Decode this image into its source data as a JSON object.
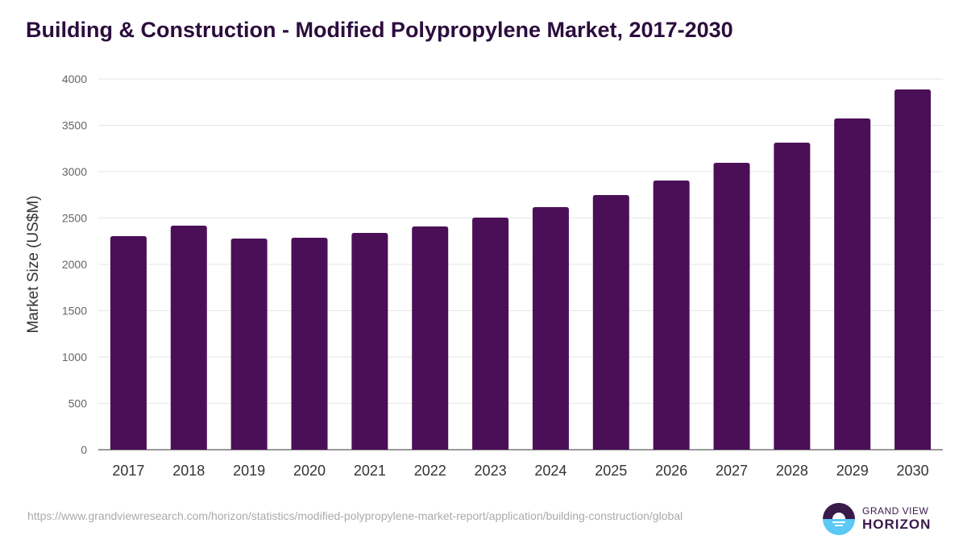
{
  "chart_data": {
    "type": "bar",
    "title": "Building & Construction - Modified Polypropylene Market, 2017-2030",
    "xlabel": "",
    "ylabel": "Market Size (US$M)",
    "ylim": [
      0,
      4000
    ],
    "yticks": [
      0,
      500,
      1000,
      1500,
      2000,
      2500,
      3000,
      3500,
      4000
    ],
    "grid": true,
    "color": "#4b0f57",
    "categories": [
      "2017",
      "2018",
      "2019",
      "2020",
      "2021",
      "2022",
      "2023",
      "2024",
      "2025",
      "2026",
      "2027",
      "2028",
      "2029",
      "2030"
    ],
    "values": [
      2304,
      2417,
      2278,
      2287,
      2339,
      2409,
      2504,
      2617,
      2748,
      2904,
      3096,
      3313,
      3574,
      3887
    ]
  },
  "source_url": "https://www.grandviewresearch.com/horizon/statistics/modified-polypropylene-market-report/application/building-construction/global",
  "logo": {
    "line1": "GRAND VIEW",
    "line2": "HORIZON"
  }
}
